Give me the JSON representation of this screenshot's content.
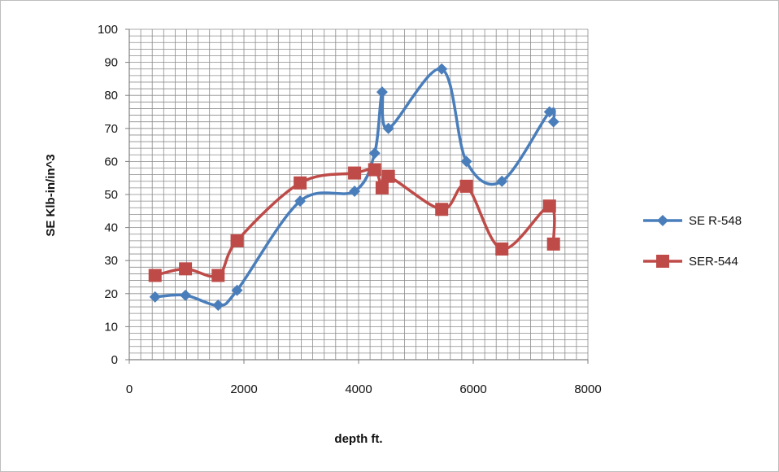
{
  "chart_data": {
    "type": "line",
    "xlabel": "depth ft.",
    "ylabel": "SE Klb-in/in^3",
    "xlim": [
      0,
      8000
    ],
    "ylim": [
      0,
      100
    ],
    "x_ticks": [
      "0",
      "2000",
      "4000",
      "6000",
      "8000"
    ],
    "y_ticks": [
      "0",
      "10",
      "20",
      "30",
      "40",
      "50",
      "60",
      "70",
      "80",
      "90",
      "100"
    ],
    "grid": true,
    "legend_position": "right",
    "series": [
      {
        "name": "SE R-548",
        "color": "#4a7ebb",
        "marker": "diamond",
        "smooth": true,
        "x": [
          450,
          980,
          1550,
          1880,
          2980,
          3930,
          4280,
          4410,
          4520,
          5450,
          5880,
          6500,
          7330,
          7400
        ],
        "y": [
          19,
          19.5,
          16.5,
          21,
          48,
          51,
          62.5,
          81,
          70,
          88,
          60,
          54,
          75,
          72
        ]
      },
      {
        "name": "SER-544",
        "color": "#be4b48",
        "marker": "square",
        "smooth": true,
        "x": [
          450,
          980,
          1550,
          1880,
          2980,
          3930,
          4280,
          4410,
          4520,
          5450,
          5880,
          6500,
          7330,
          7400
        ],
        "y": [
          25.5,
          27.5,
          25.5,
          36,
          53.5,
          56.5,
          57.5,
          52,
          55.5,
          45.5,
          52.5,
          33.5,
          46.5,
          35
        ]
      }
    ]
  }
}
